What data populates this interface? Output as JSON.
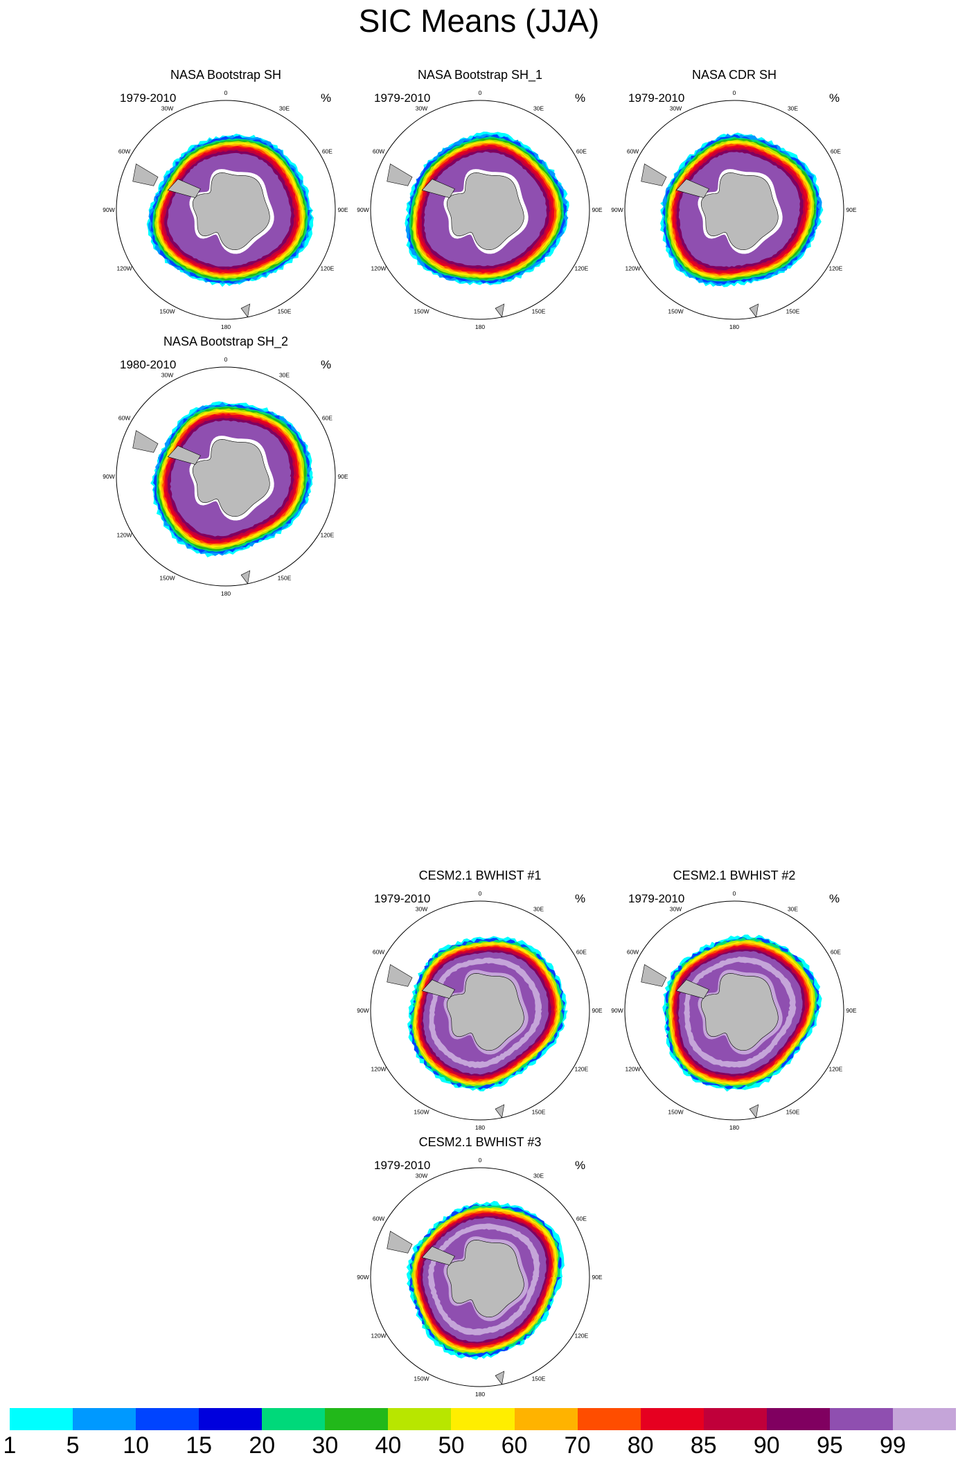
{
  "figure": {
    "title": "SIC Means (JJA)"
  },
  "common": {
    "units": "%",
    "lon_labels": [
      "0",
      "30E",
      "60E",
      "90E",
      "120E",
      "150E",
      "180",
      "150W",
      "120W",
      "90W",
      "60W",
      "30W"
    ]
  },
  "panels": [
    {
      "id": "nasa-bootstrap-sh",
      "title": "NASA Bootstrap SH",
      "years": "1979-2010",
      "model": false,
      "variant": 0
    },
    {
      "id": "nasa-bootstrap-sh-1",
      "title": "NASA Bootstrap SH_1",
      "years": "1979-2010",
      "model": false,
      "variant": 1
    },
    {
      "id": "nasa-cdr-sh",
      "title": "NASA CDR SH",
      "years": "1979-2010",
      "model": false,
      "variant": 2
    },
    {
      "id": "nasa-bootstrap-sh-2",
      "title": "NASA Bootstrap SH_2",
      "years": "1980-2010",
      "model": false,
      "variant": 3
    },
    {
      "id": "cesm21-bwhist-1",
      "title": "CESM2.1 BWHIST #1",
      "years": "1979-2010",
      "model": true,
      "variant": 4
    },
    {
      "id": "cesm21-bwhist-2",
      "title": "CESM2.1 BWHIST #2",
      "years": "1979-2010",
      "model": true,
      "variant": 5
    },
    {
      "id": "cesm21-bwhist-3",
      "title": "CESM2.1 BWHIST #3",
      "years": "1979-2010",
      "model": true,
      "variant": 6
    }
  ],
  "colorbar": {
    "colors": [
      "#00ffff",
      "#0099ff",
      "#0044ff",
      "#0000dd",
      "#00d97a",
      "#22b81a",
      "#b8e600",
      "#ffee00",
      "#ffb300",
      "#ff4d00",
      "#e60020",
      "#c0003a",
      "#800060",
      "#8f4fb0",
      "#c5a5d9"
    ],
    "labels": [
      "1",
      "5",
      "10",
      "15",
      "20",
      "30",
      "40",
      "50",
      "60",
      "70",
      "80",
      "85",
      "90",
      "95",
      "99"
    ]
  },
  "colors": {
    "land": "#bbbbbb",
    "ocean": "#ffffff",
    "outline": "#000000"
  }
}
